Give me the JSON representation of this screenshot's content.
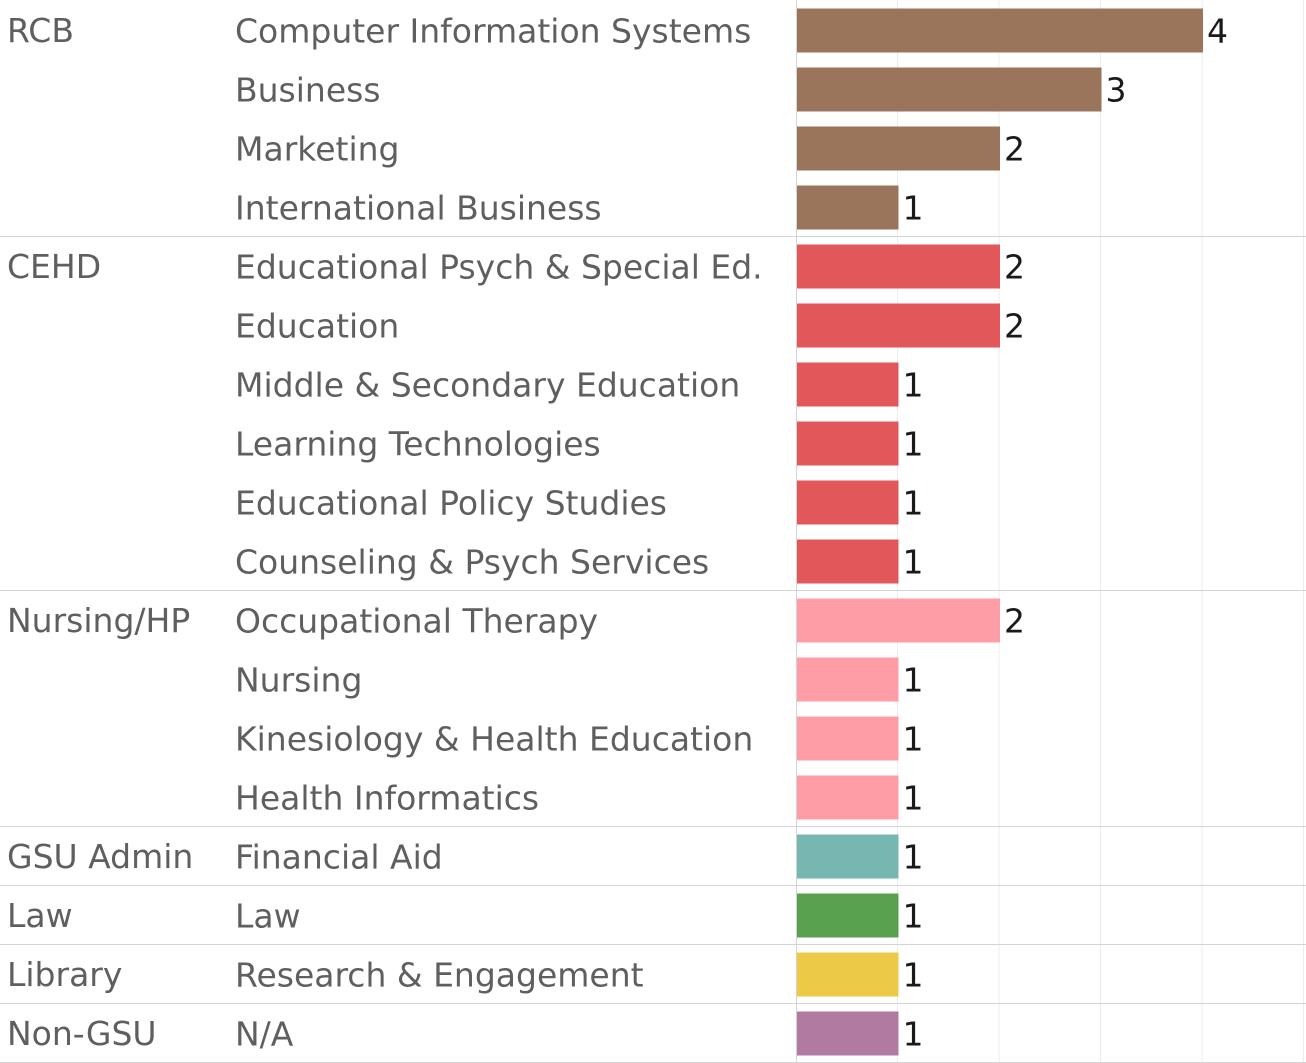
{
  "chart_data": {
    "type": "bar",
    "orientation": "horizontal",
    "title": "",
    "xlabel": "",
    "ylabel": "",
    "xlim": [
      0,
      5
    ],
    "grid": true,
    "groups": [
      {
        "name": "RCB",
        "color": "#9a755c",
        "items": [
          {
            "label": "Computer Information Systems",
            "value": 4
          },
          {
            "label": "Business",
            "value": 3
          },
          {
            "label": "Marketing",
            "value": 2
          },
          {
            "label": "International Business",
            "value": 1
          }
        ]
      },
      {
        "name": "CEHD",
        "color": "#e1575a",
        "items": [
          {
            "label": "Educational Psych & Special Ed.",
            "value": 2
          },
          {
            "label": "Education",
            "value": 2
          },
          {
            "label": "Middle & Secondary Education",
            "value": 1
          },
          {
            "label": "Learning Technologies",
            "value": 1
          },
          {
            "label": "Educational Policy Studies",
            "value": 1
          },
          {
            "label": "Counseling & Psych Services",
            "value": 1
          }
        ]
      },
      {
        "name": "Nursing/HP",
        "color": "#ff9da7",
        "items": [
          {
            "label": "Occupational Therapy",
            "value": 2
          },
          {
            "label": "Nursing",
            "value": 1
          },
          {
            "label": "Kinesiology & Health Education",
            "value": 1
          },
          {
            "label": "Health Informatics",
            "value": 1
          }
        ]
      },
      {
        "name": "GSU Admin",
        "color": "#76b7b2",
        "items": [
          {
            "label": "Financial Aid",
            "value": 1
          }
        ]
      },
      {
        "name": "Law",
        "color": "#59a14f",
        "items": [
          {
            "label": "Law",
            "value": 1
          }
        ]
      },
      {
        "name": "Library",
        "color": "#edc948",
        "items": [
          {
            "label": "Research & Engagement",
            "value": 1
          }
        ]
      },
      {
        "name": "Non-GSU",
        "color": "#b07aa1",
        "items": [
          {
            "label": "N/A",
            "value": 1
          }
        ]
      }
    ]
  }
}
